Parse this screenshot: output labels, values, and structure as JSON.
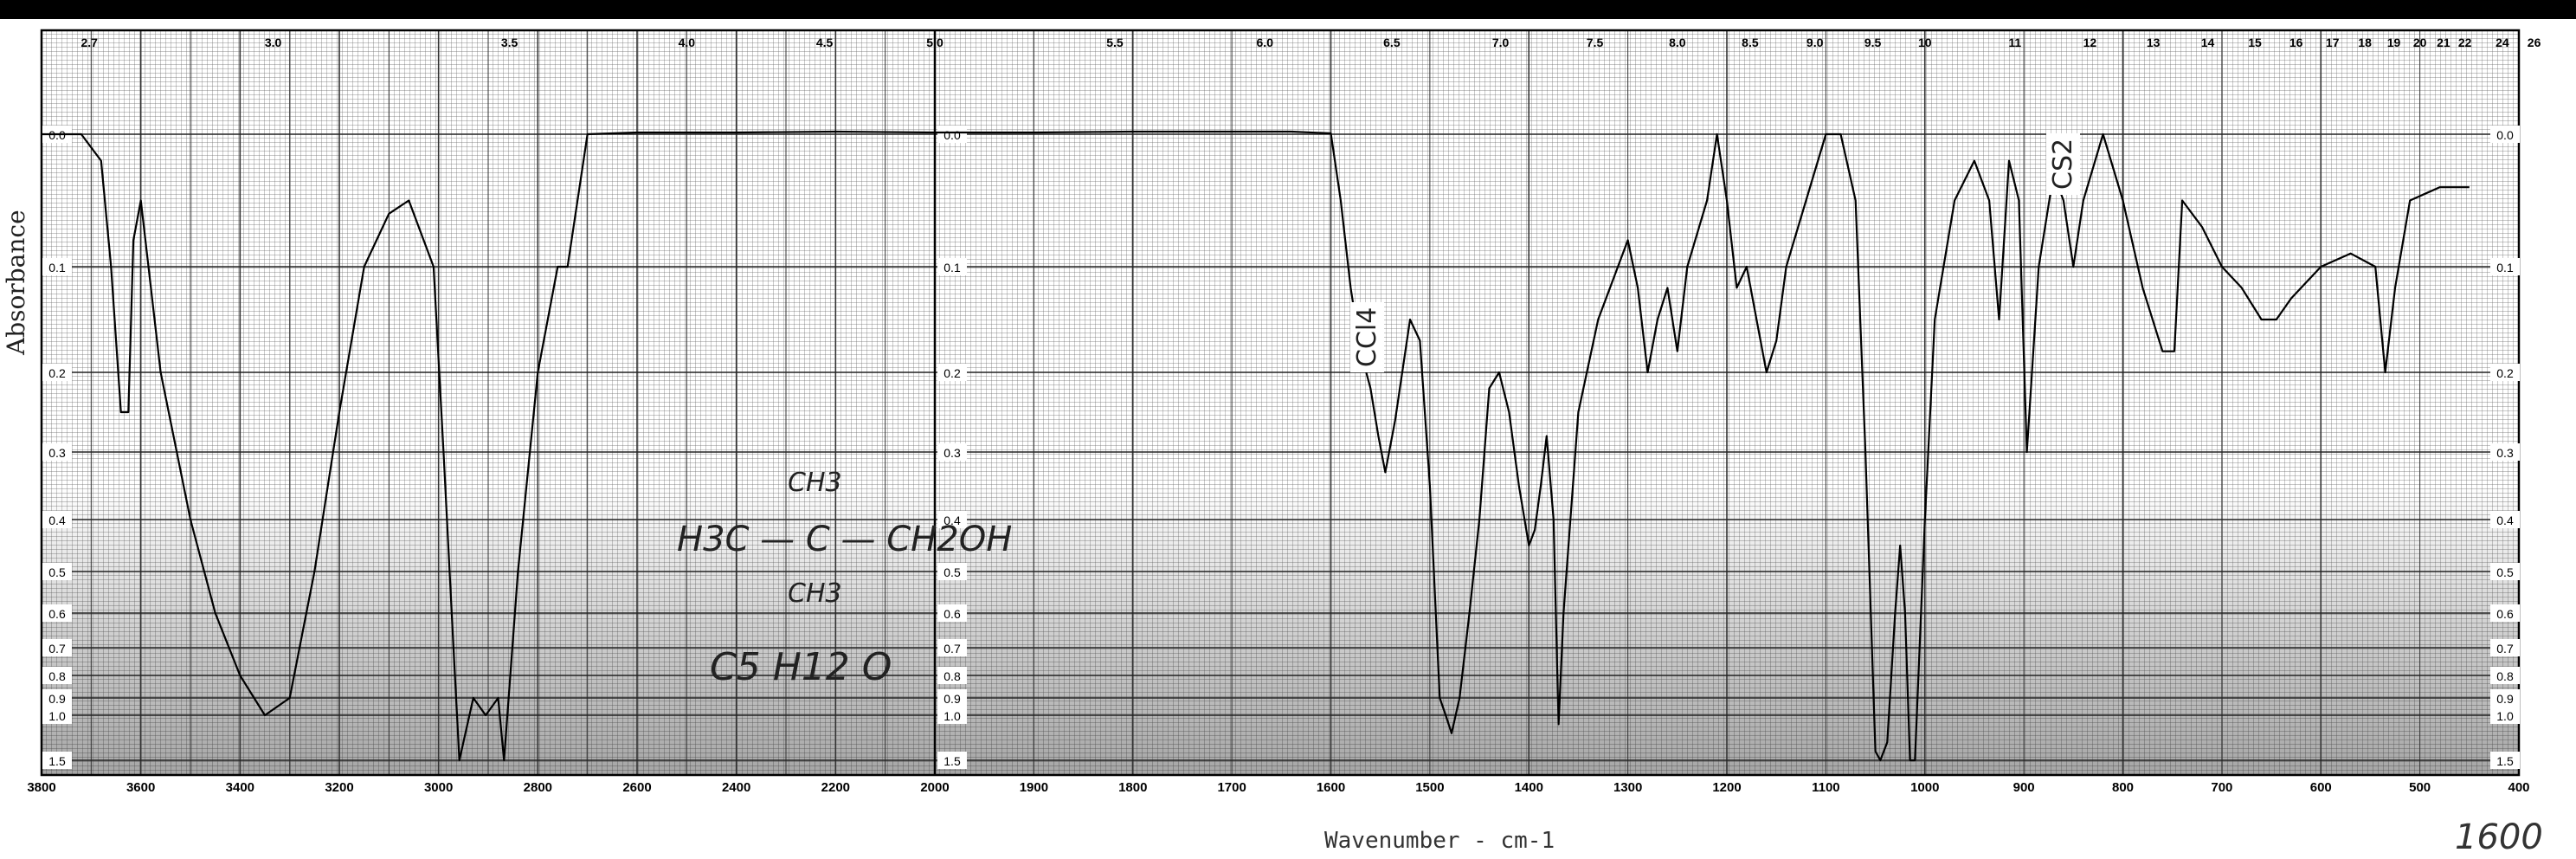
{
  "header": {
    "bar_color": "#000000"
  },
  "axes": {
    "ylabel": "Absorbance",
    "xlabel": "Wavenumber - cm-1",
    "micron_ticks": [
      "2.7",
      "3.0",
      "3.5",
      "4.0",
      "4.5",
      "5.0",
      "5.5",
      "6.0",
      "6.5",
      "7.0",
      "7.5",
      "8.0",
      "8.5",
      "9.0",
      "9.5",
      "10",
      "11",
      "12",
      "13",
      "14",
      "15",
      "16",
      "17",
      "18",
      "19",
      "20",
      "21",
      "22",
      "24",
      "26"
    ],
    "wavenumber_ticks": [
      "3800",
      "3600",
      "3400",
      "3200",
      "3000",
      "2800",
      "2600",
      "2400",
      "2200",
      "2000",
      "1900",
      "1800",
      "1700",
      "1600",
      "1500",
      "1400",
      "1300",
      "1200",
      "1100",
      "1000",
      "900",
      "800",
      "700",
      "600",
      "500",
      "400"
    ],
    "absorbance_ticks": [
      "0.0",
      "0.1",
      "0.2",
      "0.3",
      "0.4",
      "0.5",
      "0.6",
      "0.7",
      "0.8",
      "0.9",
      "1.0",
      "1.5"
    ]
  },
  "annotations": {
    "solvent1": "CCl4",
    "solvent2": "CS2",
    "formula_top": "CH3",
    "formula_main": "H3C — C — CH2OH",
    "formula_bottom": "CH3",
    "molecular_formula": "C5 H12 O",
    "page_number": "1600"
  },
  "chart_data": {
    "type": "line",
    "title": "",
    "xlabel": "Wavenumber - cm-1",
    "ylabel": "Absorbance",
    "x_axis": "wavenumber, high-to-low; 3800–2000 cm-1 and 2000–400 cm-1 panels",
    "xlim": [
      3800,
      400
    ],
    "ylim": [
      0.0,
      1.5
    ],
    "grid": true,
    "series": [
      {
        "points": [
          [
            3800,
            0.0
          ],
          [
            3720,
            0.0
          ],
          [
            3680,
            0.02
          ],
          [
            3660,
            0.1
          ],
          [
            3640,
            0.25
          ],
          [
            3625,
            0.25
          ],
          [
            3615,
            0.08
          ],
          [
            3600,
            0.05
          ],
          [
            3560,
            0.2
          ],
          [
            3500,
            0.4
          ],
          [
            3450,
            0.6
          ],
          [
            3400,
            0.8
          ],
          [
            3350,
            1.0
          ],
          [
            3300,
            0.9
          ],
          [
            3250,
            0.5
          ],
          [
            3200,
            0.25
          ],
          [
            3150,
            0.1
          ],
          [
            3100,
            0.06
          ],
          [
            3060,
            0.05
          ],
          [
            3010,
            0.1
          ],
          [
            2990,
            0.3
          ],
          [
            2970,
            0.7
          ],
          [
            2958,
            1.5
          ],
          [
            2930,
            0.9
          ],
          [
            2905,
            1.0
          ],
          [
            2880,
            0.9
          ],
          [
            2868,
            1.5
          ],
          [
            2840,
            0.5
          ],
          [
            2800,
            0.2
          ],
          [
            2760,
            0.1
          ],
          [
            2740,
            0.1
          ],
          [
            2720,
            0.05
          ],
          [
            2700,
            0.0
          ],
          [
            2600,
            -0.02
          ],
          [
            2400,
            -0.02
          ],
          [
            2200,
            -0.03
          ],
          [
            2000,
            -0.02
          ],
          [
            1900,
            -0.02
          ],
          [
            1800,
            -0.03
          ],
          [
            1700,
            -0.03
          ],
          [
            1640,
            -0.03
          ],
          [
            1600,
            -0.01
          ],
          [
            1590,
            0.05
          ],
          [
            1580,
            0.12
          ],
          [
            1570,
            0.18
          ],
          [
            1560,
            0.22
          ],
          [
            1552,
            0.28
          ],
          [
            1545,
            0.33
          ],
          [
            1535,
            0.26
          ],
          [
            1520,
            0.15
          ],
          [
            1510,
            0.17
          ],
          [
            1500,
            0.35
          ],
          [
            1490,
            0.9
          ],
          [
            1484,
            1.0
          ],
          [
            1478,
            1.2
          ],
          [
            1470,
            0.9
          ],
          [
            1460,
            0.6
          ],
          [
            1450,
            0.4
          ],
          [
            1440,
            0.22
          ],
          [
            1430,
            0.2
          ],
          [
            1420,
            0.25
          ],
          [
            1410,
            0.35
          ],
          [
            1400,
            0.45
          ],
          [
            1394,
            0.42
          ],
          [
            1388,
            0.35
          ],
          [
            1382,
            0.28
          ],
          [
            1375,
            0.4
          ],
          [
            1370,
            1.1
          ],
          [
            1365,
            0.6
          ],
          [
            1350,
            0.25
          ],
          [
            1330,
            0.15
          ],
          [
            1300,
            0.08
          ],
          [
            1290,
            0.12
          ],
          [
            1280,
            0.2
          ],
          [
            1270,
            0.15
          ],
          [
            1260,
            0.12
          ],
          [
            1250,
            0.18
          ],
          [
            1240,
            0.1
          ],
          [
            1220,
            0.05
          ],
          [
            1210,
            0.0
          ],
          [
            1200,
            0.05
          ],
          [
            1190,
            0.12
          ],
          [
            1180,
            0.1
          ],
          [
            1170,
            0.15
          ],
          [
            1160,
            0.2
          ],
          [
            1150,
            0.17
          ],
          [
            1140,
            0.1
          ],
          [
            1120,
            0.05
          ],
          [
            1100,
            0.0
          ],
          [
            1085,
            0.0
          ],
          [
            1070,
            0.05
          ],
          [
            1060,
            0.3
          ],
          [
            1050,
            1.4
          ],
          [
            1045,
            1.5
          ],
          [
            1038,
            1.3
          ],
          [
            1030,
            0.6
          ],
          [
            1025,
            0.45
          ],
          [
            1020,
            0.6
          ],
          [
            1015,
            1.5
          ],
          [
            1010,
            1.5
          ],
          [
            1000,
            0.4
          ],
          [
            990,
            0.15
          ],
          [
            970,
            0.05
          ],
          [
            950,
            0.02
          ],
          [
            935,
            0.05
          ],
          [
            925,
            0.15
          ],
          [
            915,
            0.02
          ],
          [
            905,
            0.05
          ],
          [
            897,
            0.3
          ],
          [
            885,
            0.1
          ],
          [
            870,
            0.03
          ],
          [
            860,
            0.05
          ],
          [
            850,
            0.1
          ],
          [
            840,
            0.05
          ],
          [
            820,
            0.0
          ],
          [
            800,
            0.05
          ],
          [
            780,
            0.12
          ],
          [
            760,
            0.18
          ],
          [
            748,
            0.18
          ],
          [
            740,
            0.05
          ],
          [
            720,
            0.07
          ],
          [
            700,
            0.1
          ],
          [
            680,
            0.12
          ],
          [
            660,
            0.15
          ],
          [
            645,
            0.15
          ],
          [
            630,
            0.13
          ],
          [
            600,
            0.1
          ],
          [
            570,
            0.09
          ],
          [
            545,
            0.1
          ],
          [
            535,
            0.2
          ],
          [
            525,
            0.12
          ],
          [
            510,
            0.05
          ],
          [
            480,
            0.04
          ],
          [
            450,
            0.04
          ]
        ]
      }
    ]
  }
}
